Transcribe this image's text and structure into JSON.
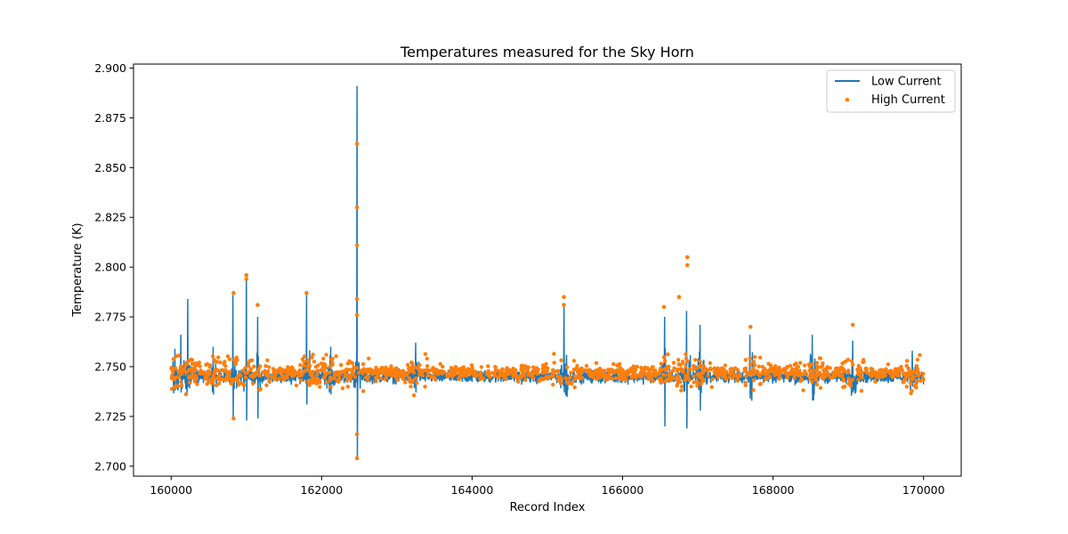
{
  "chart_data": {
    "type": "line",
    "title": "Temperatures measured for the Sky Horn",
    "xlabel": "Record Index",
    "ylabel": "Temperature (K)",
    "xlim": [
      159500,
      170500
    ],
    "ylim": [
      2.695,
      2.902
    ],
    "xticks": [
      160000,
      162000,
      164000,
      166000,
      168000,
      170000
    ],
    "yticks": [
      2.7,
      2.725,
      2.75,
      2.775,
      2.8,
      2.825,
      2.85,
      2.875,
      2.9
    ],
    "grid": false,
    "legend_position": "top-right",
    "colors": {
      "low": "#1f77b4",
      "high": "#ff7f0e"
    },
    "series": [
      {
        "name": "Low Current",
        "kind": "line",
        "color": "#1f77b4",
        "x_range": [
          160000,
          170000
        ],
        "baseline": 2.745,
        "spikes": [
          {
            "x": 160050,
            "max": 2.759,
            "min": 2.738
          },
          {
            "x": 160130,
            "max": 2.766,
            "min": 2.737
          },
          {
            "x": 160220,
            "max": 2.784,
            "min": 2.74
          },
          {
            "x": 160560,
            "max": 2.76,
            "min": 2.736
          },
          {
            "x": 160820,
            "max": 2.786,
            "min": 2.724
          },
          {
            "x": 161000,
            "max": 2.795,
            "min": 2.723
          },
          {
            "x": 161150,
            "max": 2.775,
            "min": 2.724
          },
          {
            "x": 161800,
            "max": 2.786,
            "min": 2.731
          },
          {
            "x": 162120,
            "max": 2.76,
            "min": 2.736
          },
          {
            "x": 162470,
            "max": 2.891,
            "min": 2.703
          },
          {
            "x": 163250,
            "max": 2.762,
            "min": 2.737
          },
          {
            "x": 165220,
            "max": 2.782,
            "min": 2.737
          },
          {
            "x": 166560,
            "max": 2.775,
            "min": 2.72
          },
          {
            "x": 166850,
            "max": 2.778,
            "min": 2.719
          },
          {
            "x": 167030,
            "max": 2.771,
            "min": 2.728
          },
          {
            "x": 167690,
            "max": 2.766,
            "min": 2.734
          },
          {
            "x": 168520,
            "max": 2.766,
            "min": 2.733
          },
          {
            "x": 169060,
            "max": 2.763,
            "min": 2.737
          },
          {
            "x": 169850,
            "max": 2.758,
            "min": 2.74
          }
        ]
      },
      {
        "name": "High Current",
        "kind": "scatter",
        "color": "#ff7f0e",
        "x_range": [
          160000,
          170000
        ],
        "baseline": 2.747,
        "outliers": [
          {
            "x": 160830,
            "y": 2.787
          },
          {
            "x": 160830,
            "y": 2.724
          },
          {
            "x": 161000,
            "y": 2.796
          },
          {
            "x": 161000,
            "y": 2.794
          },
          {
            "x": 161150,
            "y": 2.781
          },
          {
            "x": 161800,
            "y": 2.787
          },
          {
            "x": 162470,
            "y": 2.862
          },
          {
            "x": 162470,
            "y": 2.83
          },
          {
            "x": 162470,
            "y": 2.811
          },
          {
            "x": 162470,
            "y": 2.784
          },
          {
            "x": 162470,
            "y": 2.776
          },
          {
            "x": 162470,
            "y": 2.716
          },
          {
            "x": 162470,
            "y": 2.704
          },
          {
            "x": 165220,
            "y": 2.785
          },
          {
            "x": 165220,
            "y": 2.781
          },
          {
            "x": 166550,
            "y": 2.78
          },
          {
            "x": 166860,
            "y": 2.805
          },
          {
            "x": 166860,
            "y": 2.801
          },
          {
            "x": 166750,
            "y": 2.785
          },
          {
            "x": 169060,
            "y": 2.771
          },
          {
            "x": 167700,
            "y": 2.77
          }
        ]
      }
    ]
  }
}
